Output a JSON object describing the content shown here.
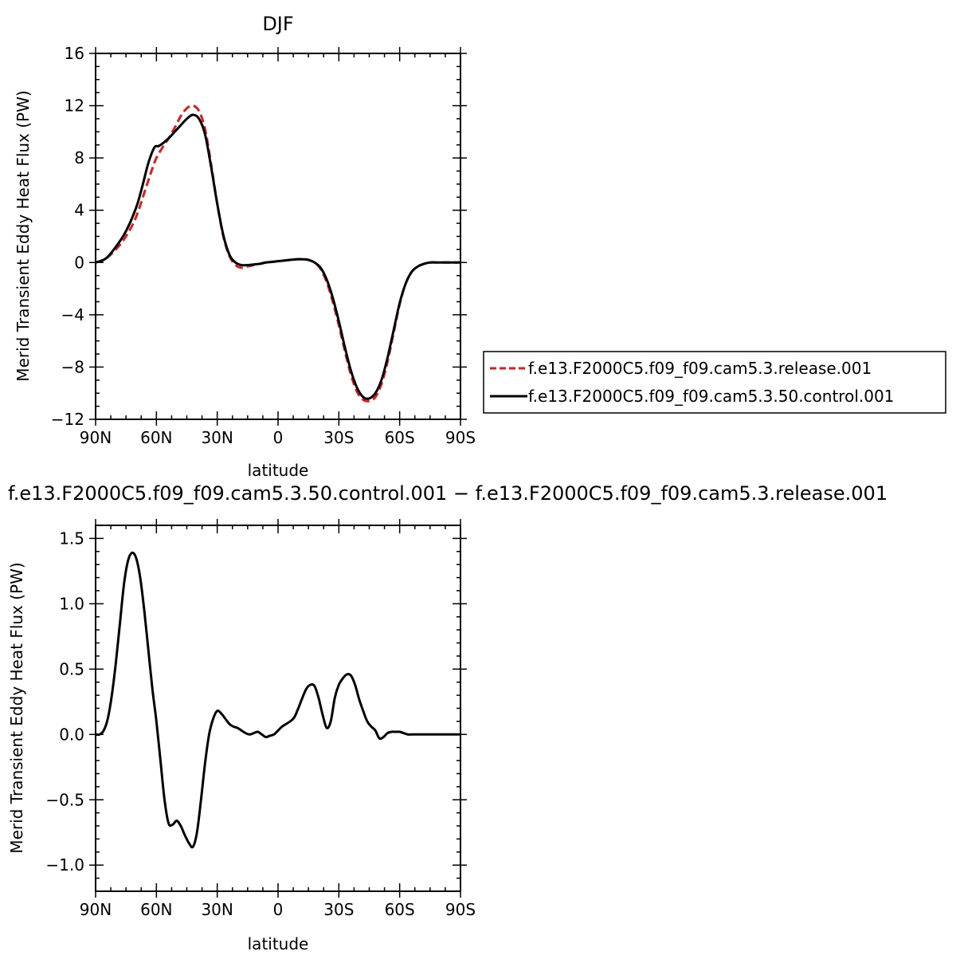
{
  "chart_data": [
    {
      "type": "line",
      "title": "DJF",
      "xlabel": "latitude",
      "ylabel": "Merid Transient Eddy Heat Flux (PW)",
      "xlim": [
        90,
        -90
      ],
      "ylim": [
        -12,
        16
      ],
      "xticks": [
        {
          "value": 90,
          "label": "90N"
        },
        {
          "value": 60,
          "label": "60N"
        },
        {
          "value": 30,
          "label": "30N"
        },
        {
          "value": 0,
          "label": "0"
        },
        {
          "value": -30,
          "label": "30S"
        },
        {
          "value": -60,
          "label": "60S"
        },
        {
          "value": -90,
          "label": "90S"
        }
      ],
      "yticks": [
        {
          "value": 16,
          "label": "16"
        },
        {
          "value": 12,
          "label": "12"
        },
        {
          "value": 8,
          "label": "8"
        },
        {
          "value": 4,
          "label": "4"
        },
        {
          "value": 0,
          "label": "0"
        },
        {
          "value": -4,
          "label": "−4"
        },
        {
          "value": -8,
          "label": "−8"
        },
        {
          "value": -12,
          "label": "−12"
        }
      ],
      "legend_placement": "right",
      "series": [
        {
          "name": "f.e13.F2000C5.f09_f09.cam5.3.release.001",
          "color": "#e31a1c",
          "dash": true,
          "points": [
            [
              90,
              0
            ],
            [
              85,
              0.3
            ],
            [
              80,
              1.0
            ],
            [
              75,
              2.0
            ],
            [
              70,
              3.5
            ],
            [
              65,
              5.8
            ],
            [
              62,
              7.2
            ],
            [
              60,
              8.0
            ],
            [
              57,
              8.8
            ],
            [
              54,
              9.5
            ],
            [
              51,
              10.3
            ],
            [
              48,
              11.2
            ],
            [
              45,
              11.8
            ],
            [
              42,
              12.0
            ],
            [
              39,
              11.6
            ],
            [
              36,
              10.2
            ],
            [
              33,
              7.5
            ],
            [
              30,
              4.5
            ],
            [
              27,
              2.0
            ],
            [
              24,
              0.5
            ],
            [
              21,
              -0.2
            ],
            [
              18,
              -0.4
            ],
            [
              15,
              -0.3
            ],
            [
              12,
              -0.2
            ],
            [
              9,
              -0.1
            ],
            [
              6,
              0
            ],
            [
              3,
              0.05
            ],
            [
              0,
              0.1
            ],
            [
              -3,
              0.15
            ],
            [
              -6,
              0.2
            ],
            [
              -9,
              0.25
            ],
            [
              -12,
              0.25
            ],
            [
              -15,
              0.2
            ],
            [
              -18,
              0
            ],
            [
              -21,
              -0.5
            ],
            [
              -24,
              -1.5
            ],
            [
              -27,
              -3.0
            ],
            [
              -30,
              -4.8
            ],
            [
              -33,
              -6.8
            ],
            [
              -36,
              -8.6
            ],
            [
              -39,
              -9.9
            ],
            [
              -42,
              -10.5
            ],
            [
              -45,
              -10.6
            ],
            [
              -48,
              -10.3
            ],
            [
              -51,
              -9.3
            ],
            [
              -54,
              -7.6
            ],
            [
              -57,
              -5.4
            ],
            [
              -60,
              -3.2
            ],
            [
              -63,
              -1.6
            ],
            [
              -66,
              -0.7
            ],
            [
              -69,
              -0.3
            ],
            [
              -72,
              -0.1
            ],
            [
              -75,
              0
            ],
            [
              -80,
              0
            ],
            [
              -85,
              0
            ],
            [
              -90,
              0
            ]
          ]
        },
        {
          "name": "f.e13.F2000C5.f09_f09.cam5.3.50.control.001",
          "color": "#000000",
          "dash": false,
          "points": [
            [
              90,
              0
            ],
            [
              85,
              0.3
            ],
            [
              80,
              1.2
            ],
            [
              75,
              2.4
            ],
            [
              70,
              4.2
            ],
            [
              67,
              5.8
            ],
            [
              64,
              7.6
            ],
            [
              61,
              8.8
            ],
            [
              59,
              8.9
            ],
            [
              57,
              9.1
            ],
            [
              54,
              9.5
            ],
            [
              51,
              10.0
            ],
            [
              48,
              10.5
            ],
            [
              45,
              11.0
            ],
            [
              42,
              11.3
            ],
            [
              39,
              11.0
            ],
            [
              36,
              9.8
            ],
            [
              33,
              7.3
            ],
            [
              30,
              4.5
            ],
            [
              27,
              2.1
            ],
            [
              24,
              0.6
            ],
            [
              21,
              0
            ],
            [
              18,
              -0.2
            ],
            [
              15,
              -0.2
            ],
            [
              12,
              -0.15
            ],
            [
              9,
              -0.1
            ],
            [
              6,
              0
            ],
            [
              3,
              0.05
            ],
            [
              0,
              0.1
            ],
            [
              -3,
              0.15
            ],
            [
              -6,
              0.2
            ],
            [
              -9,
              0.25
            ],
            [
              -12,
              0.25
            ],
            [
              -15,
              0.2
            ],
            [
              -18,
              0
            ],
            [
              -21,
              -0.4
            ],
            [
              -24,
              -1.3
            ],
            [
              -27,
              -2.7
            ],
            [
              -30,
              -4.5
            ],
            [
              -33,
              -6.5
            ],
            [
              -36,
              -8.3
            ],
            [
              -39,
              -9.6
            ],
            [
              -42,
              -10.3
            ],
            [
              -45,
              -10.4
            ],
            [
              -48,
              -10.0
            ],
            [
              -51,
              -9.0
            ],
            [
              -54,
              -7.3
            ],
            [
              -57,
              -5.2
            ],
            [
              -60,
              -3.1
            ],
            [
              -63,
              -1.6
            ],
            [
              -66,
              -0.7
            ],
            [
              -69,
              -0.3
            ],
            [
              -72,
              -0.1
            ],
            [
              -75,
              0
            ],
            [
              -80,
              0
            ],
            [
              -85,
              0
            ],
            [
              -90,
              0
            ]
          ]
        }
      ]
    },
    {
      "type": "line",
      "title": "f.e13.F2000C5.f09_f09.cam5.3.50.control.001 − f.e13.F2000C5.f09_f09.cam5.3.release.001",
      "xlabel": "latitude",
      "ylabel": "Merid Transient Eddy Heat Flux (PW)",
      "xlim": [
        90,
        -90
      ],
      "ylim": [
        -1.2,
        1.6
      ],
      "xticks": [
        {
          "value": 90,
          "label": "90N"
        },
        {
          "value": 60,
          "label": "60N"
        },
        {
          "value": 30,
          "label": "30N"
        },
        {
          "value": 0,
          "label": "0"
        },
        {
          "value": -30,
          "label": "30S"
        },
        {
          "value": -60,
          "label": "60S"
        },
        {
          "value": -90,
          "label": "90S"
        }
      ],
      "yticks": [
        {
          "value": 1.5,
          "label": "1.5"
        },
        {
          "value": 1.0,
          "label": "1.0"
        },
        {
          "value": 0.5,
          "label": "0.5"
        },
        {
          "value": 0.0,
          "label": "0.0"
        },
        {
          "value": -0.5,
          "label": "−0.5"
        },
        {
          "value": -1.0,
          "label": "−1.0"
        }
      ],
      "series": [
        {
          "color": "#000000",
          "dash": false,
          "points": [
            [
              90,
              0
            ],
            [
              88,
              0
            ],
            [
              86,
              0.03
            ],
            [
              84,
              0.12
            ],
            [
              82,
              0.3
            ],
            [
              80,
              0.55
            ],
            [
              78,
              0.85
            ],
            [
              76,
              1.15
            ],
            [
              74,
              1.33
            ],
            [
              72,
              1.39
            ],
            [
              70,
              1.35
            ],
            [
              68,
              1.2
            ],
            [
              66,
              0.95
            ],
            [
              64,
              0.65
            ],
            [
              62,
              0.35
            ],
            [
              60,
              0.1
            ],
            [
              58,
              -0.2
            ],
            [
              56,
              -0.5
            ],
            [
              54,
              -0.68
            ],
            [
              52,
              -0.69
            ],
            [
              50,
              -0.66
            ],
            [
              48,
              -0.7
            ],
            [
              46,
              -0.77
            ],
            [
              44,
              -0.83
            ],
            [
              42,
              -0.86
            ],
            [
              40,
              -0.75
            ],
            [
              38,
              -0.5
            ],
            [
              36,
              -0.22
            ],
            [
              34,
              0
            ],
            [
              32,
              0.12
            ],
            [
              30,
              0.18
            ],
            [
              28,
              0.16
            ],
            [
              26,
              0.12
            ],
            [
              24,
              0.08
            ],
            [
              22,
              0.06
            ],
            [
              20,
              0.05
            ],
            [
              18,
              0.03
            ],
            [
              16,
              0.01
            ],
            [
              14,
              0
            ],
            [
              12,
              0.01
            ],
            [
              10,
              0.02
            ],
            [
              8,
              0
            ],
            [
              6,
              -0.02
            ],
            [
              4,
              -0.01
            ],
            [
              2,
              0
            ],
            [
              0,
              0.03
            ],
            [
              -2,
              0.06
            ],
            [
              -4,
              0.08
            ],
            [
              -6,
              0.1
            ],
            [
              -8,
              0.13
            ],
            [
              -10,
              0.2
            ],
            [
              -12,
              0.28
            ],
            [
              -14,
              0.35
            ],
            [
              -16,
              0.38
            ],
            [
              -18,
              0.37
            ],
            [
              -20,
              0.28
            ],
            [
              -22,
              0.15
            ],
            [
              -24,
              0.05
            ],
            [
              -26,
              0.1
            ],
            [
              -28,
              0.28
            ],
            [
              -30,
              0.38
            ],
            [
              -32,
              0.43
            ],
            [
              -34,
              0.46
            ],
            [
              -36,
              0.45
            ],
            [
              -38,
              0.38
            ],
            [
              -40,
              0.27
            ],
            [
              -42,
              0.18
            ],
            [
              -44,
              0.1
            ],
            [
              -46,
              0.06
            ],
            [
              -48,
              0.03
            ],
            [
              -50,
              -0.03
            ],
            [
              -52,
              -0.02
            ],
            [
              -54,
              0.01
            ],
            [
              -56,
              0.02
            ],
            [
              -58,
              0.02
            ],
            [
              -60,
              0.02
            ],
            [
              -62,
              0.01
            ],
            [
              -64,
              0
            ],
            [
              -66,
              0
            ],
            [
              -70,
              0
            ],
            [
              -75,
              0
            ],
            [
              -80,
              0
            ],
            [
              -85,
              0
            ],
            [
              -90,
              0
            ]
          ]
        }
      ]
    }
  ]
}
